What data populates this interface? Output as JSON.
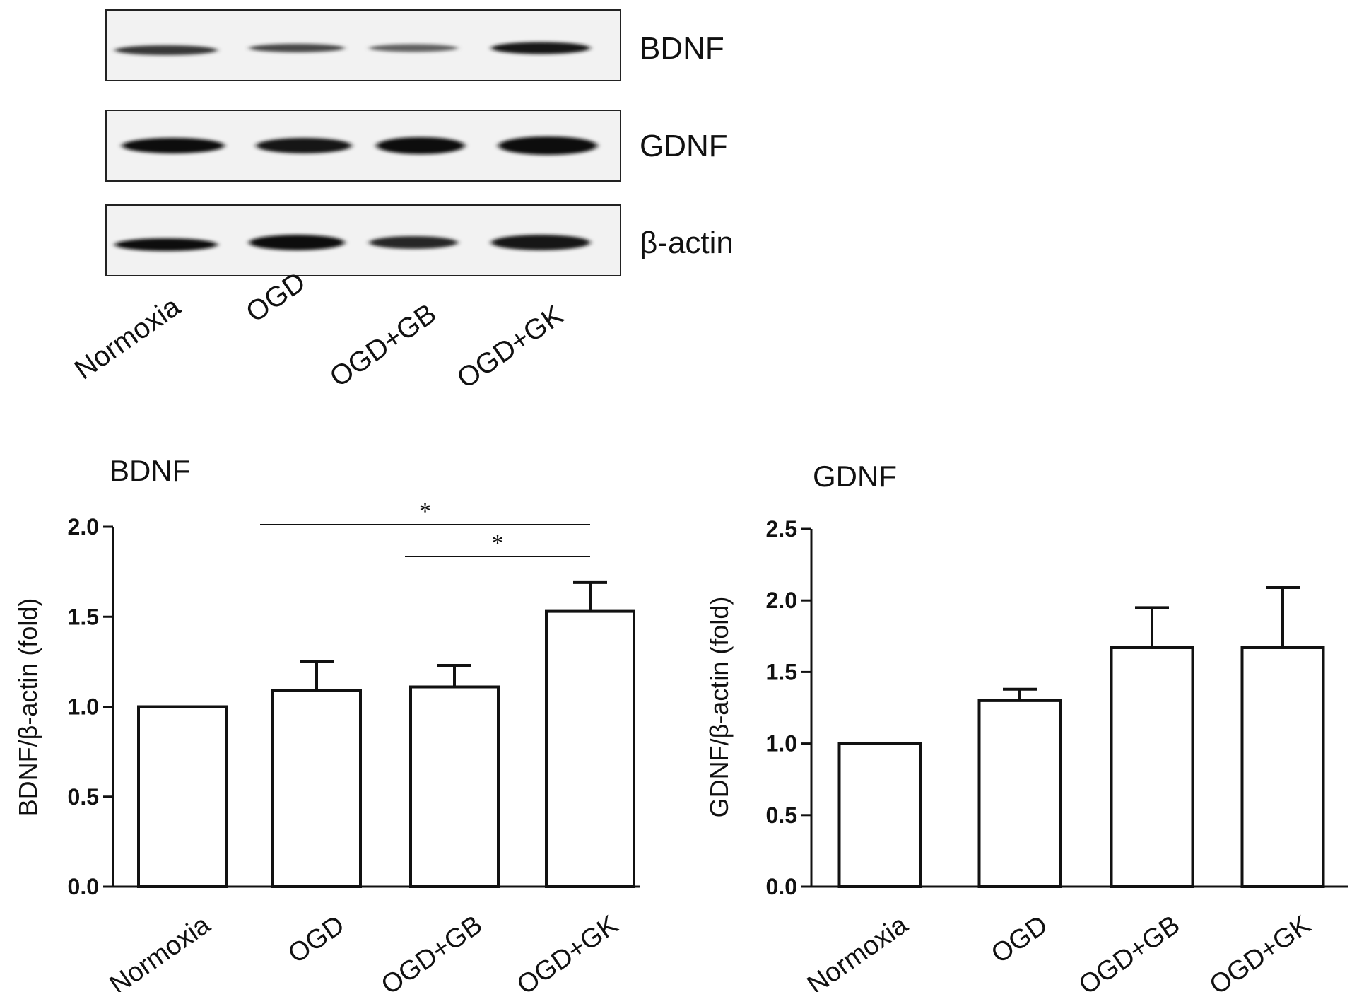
{
  "blot": {
    "lanes": [
      "Normoxia",
      "OGD",
      "OGD+GB",
      "OGD+GK"
    ],
    "rows": [
      {
        "label": "BDNF"
      },
      {
        "label": "GDNF"
      },
      {
        "label": "β-actin"
      }
    ]
  },
  "chart_data": [
    {
      "type": "bar",
      "title": "BDNF",
      "ylabel": "BDNF/β-actin (fold)",
      "xlabel": "",
      "categories": [
        "Normoxia",
        "OGD",
        "OGD+GB",
        "OGD+GK"
      ],
      "values": [
        1.0,
        1.09,
        1.11,
        1.53
      ],
      "error": [
        0,
        0.16,
        0.12,
        0.16
      ],
      "ylim": [
        0,
        2.0
      ],
      "yticks": [
        "0.0",
        "0.5",
        "1.0",
        "1.5",
        "2.0"
      ],
      "significance": [
        {
          "from": "OGD",
          "to": "OGD+GK",
          "label": "*"
        },
        {
          "from": "OGD+GB",
          "to": "OGD+GK",
          "label": "*"
        }
      ]
    },
    {
      "type": "bar",
      "title": "GDNF",
      "ylabel": "GDNF/β-actin (fold)",
      "xlabel": "",
      "categories": [
        "Normoxia",
        "OGD",
        "OGD+GB",
        "OGD+GK"
      ],
      "values": [
        1.0,
        1.3,
        1.67,
        1.67
      ],
      "error": [
        0,
        0.08,
        0.28,
        0.42
      ],
      "ylim": [
        0,
        2.5
      ],
      "yticks": [
        "0.0",
        "0.5",
        "1.0",
        "1.5",
        "2.0",
        "2.5"
      ],
      "significance": []
    }
  ]
}
